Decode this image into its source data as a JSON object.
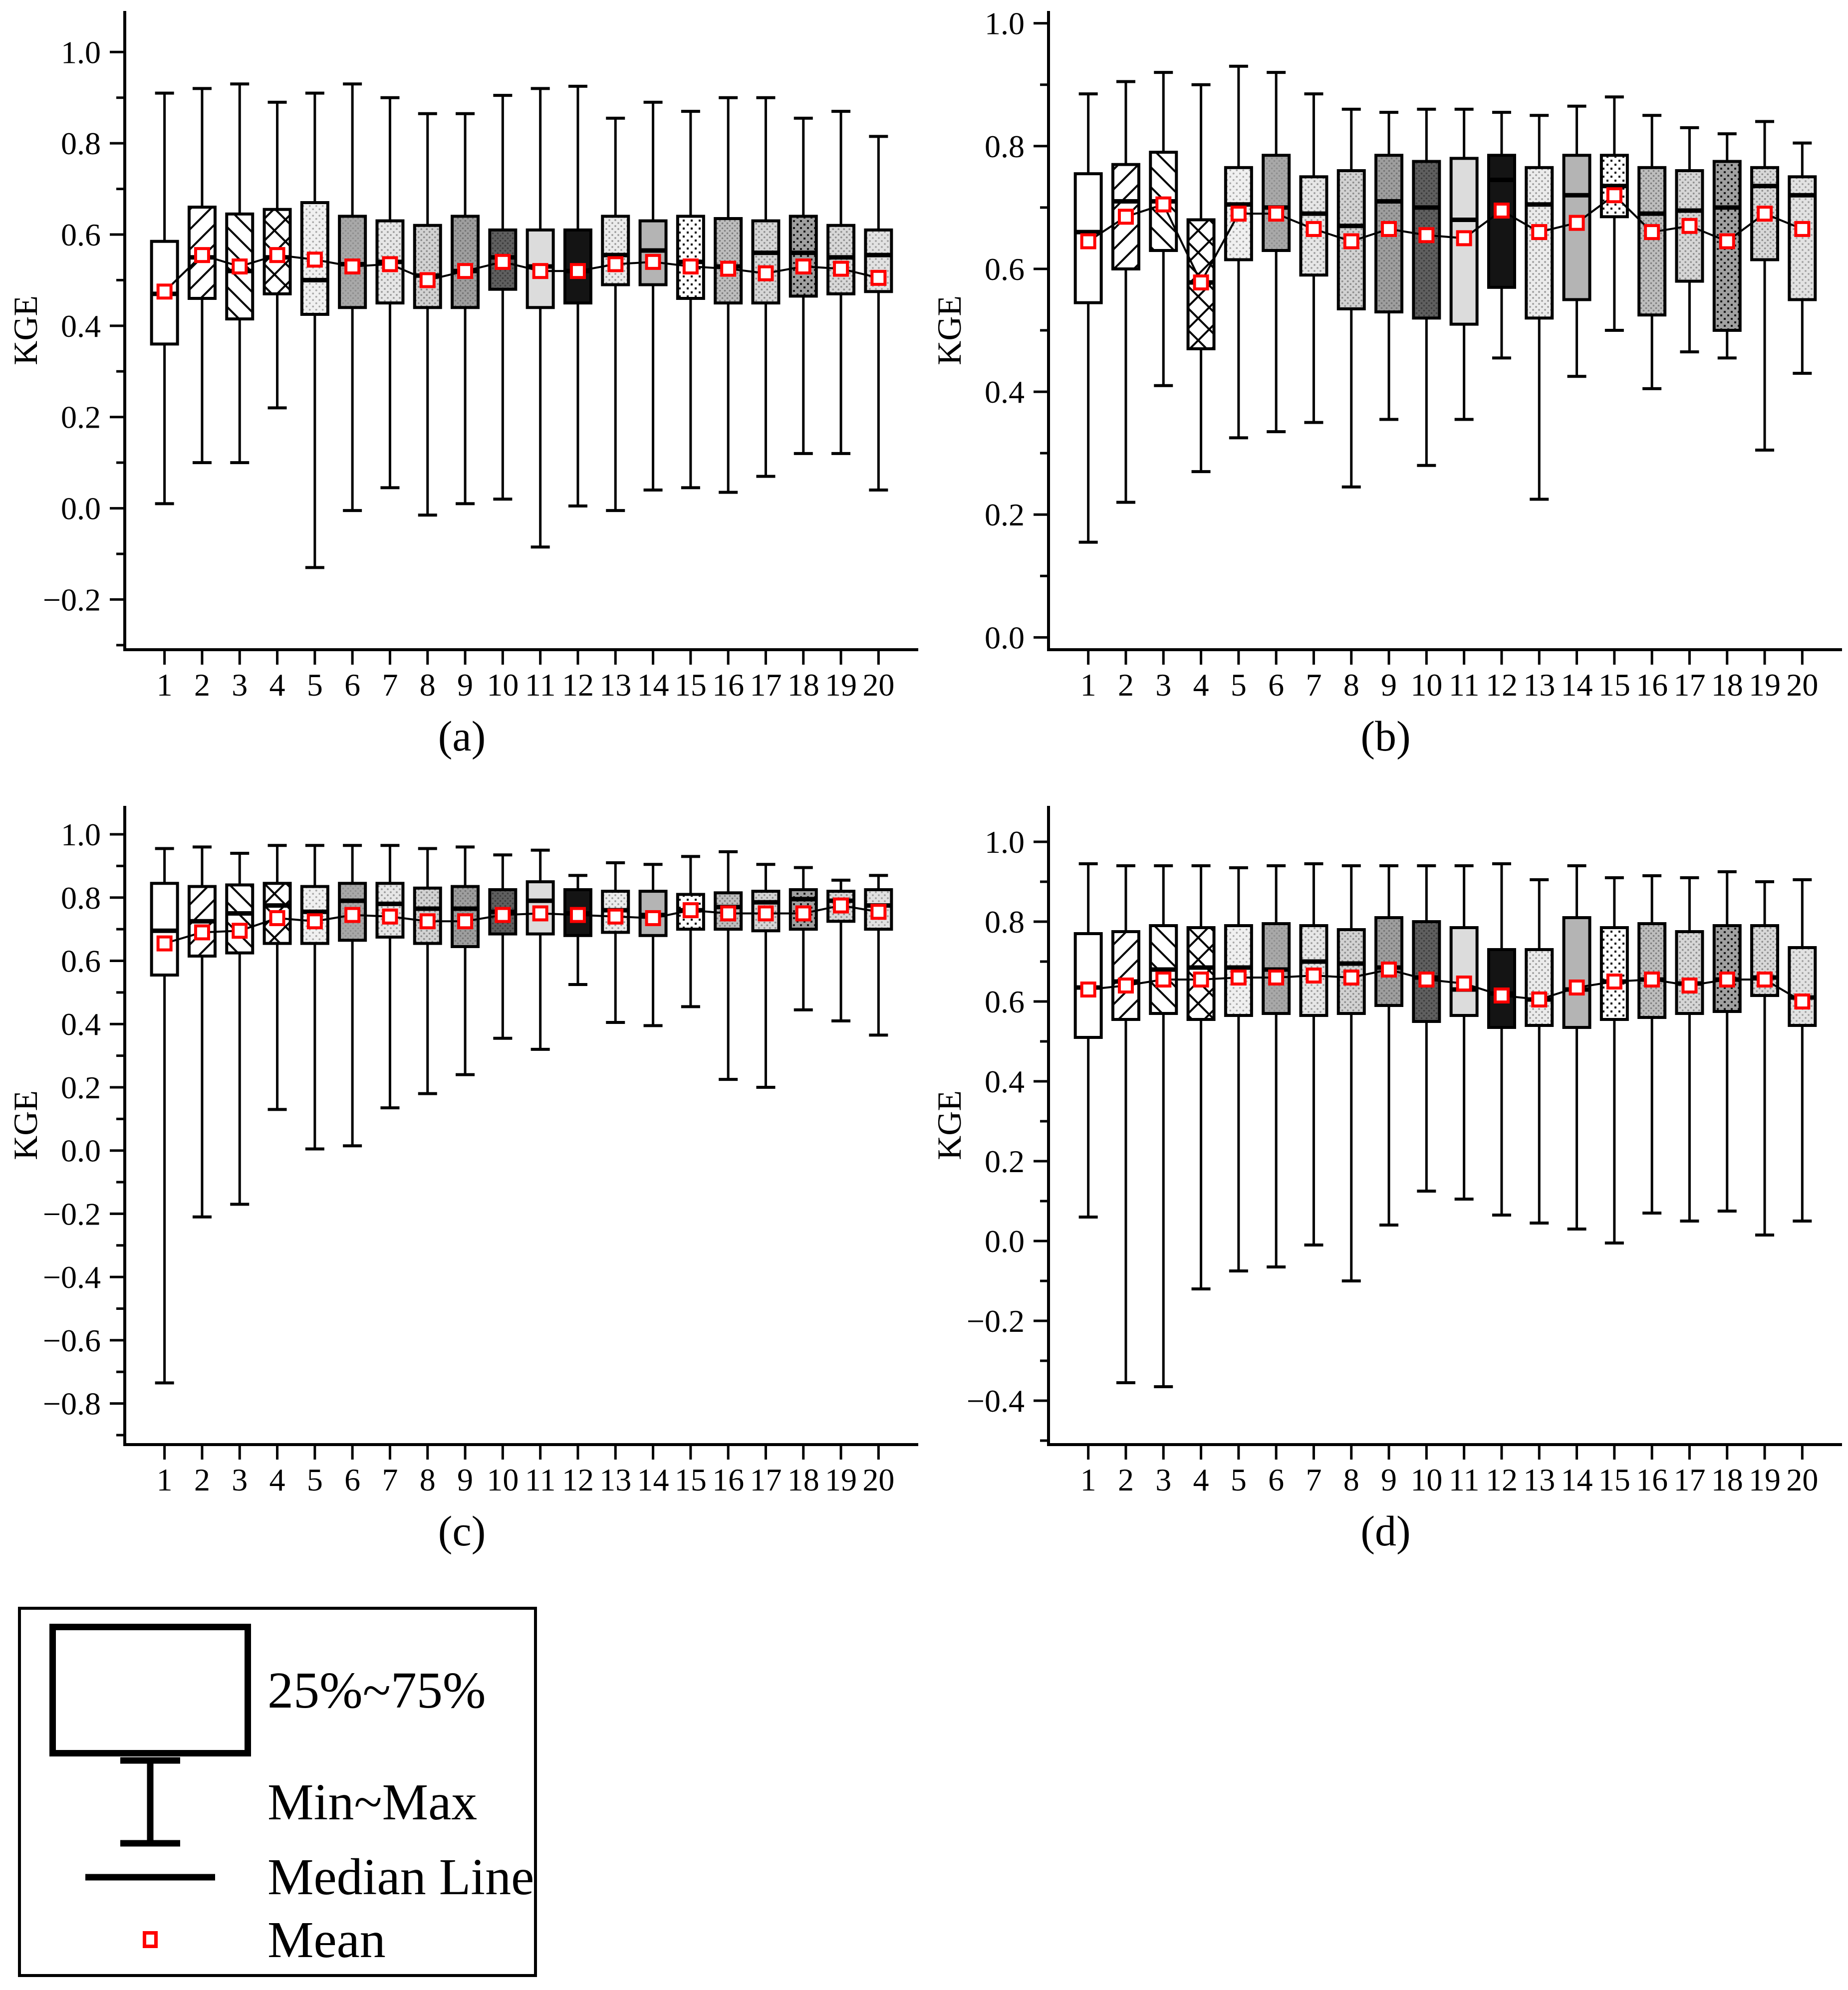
{
  "figure_title": "",
  "legend": {
    "mean_color": "#ff0000",
    "items": [
      {
        "symbol": "box-25-75",
        "label": "25%~75%"
      },
      {
        "symbol": "whisker-min-max",
        "label": "Min~Max"
      },
      {
        "symbol": "median-line",
        "label": "Median Line"
      },
      {
        "symbol": "mean-marker",
        "label": "Mean"
      }
    ]
  },
  "box_styles": [
    {
      "kind": "solid",
      "bg": "#ffffff"
    },
    {
      "kind": "hatchF",
      "bg": "#ffffff",
      "fg": "#000000",
      "size": 40,
      "lw": 4
    },
    {
      "kind": "hatchB",
      "bg": "#ffffff",
      "fg": "#000000",
      "size": 40,
      "lw": 4
    },
    {
      "kind": "cross",
      "bg": "#ffffff",
      "fg": "#000000",
      "size": 44,
      "lw": 4
    },
    {
      "kind": "dots",
      "bg": "#f0f0f0",
      "fg": "#a8a8a8",
      "size": 13,
      "r": 1.9
    },
    {
      "kind": "dots",
      "bg": "#a8a8a8",
      "fg": "#8e8e8e",
      "size": 10,
      "r": 1.8
    },
    {
      "kind": "dots",
      "bg": "#e6e6e6",
      "fg": "#9a9a9a",
      "size": 12,
      "r": 1.9
    },
    {
      "kind": "dots",
      "bg": "#d2d2d2",
      "fg": "#8c8c8c",
      "size": 11,
      "r": 1.9
    },
    {
      "kind": "dots",
      "bg": "#9e9e9e",
      "fg": "#747474",
      "size": 10,
      "r": 1.8
    },
    {
      "kind": "dots",
      "bg": "#5f5f5f",
      "fg": "#3c3c3c",
      "size": 10,
      "r": 1.8
    },
    {
      "kind": "solid",
      "bg": "#dcdcdc"
    },
    {
      "kind": "solid",
      "bg": "#141414"
    },
    {
      "kind": "dots",
      "bg": "#ebebeb",
      "fg": "#9a9a9a",
      "size": 12,
      "r": 1.9
    },
    {
      "kind": "solid",
      "bg": "#b4b4b4"
    },
    {
      "kind": "grid",
      "bg": "#ffffff",
      "fg": "#000000",
      "size": 16,
      "cell": 4
    },
    {
      "kind": "dots",
      "bg": "#bdbdbd",
      "fg": "#7d7d7d",
      "size": 10,
      "r": 1.8
    },
    {
      "kind": "dots",
      "bg": "#d6d6d6",
      "fg": "#8f8f8f",
      "size": 11,
      "r": 1.9
    },
    {
      "kind": "grid",
      "bg": "#a0a0a0",
      "fg": "#1a1a1a",
      "size": 14,
      "cell": 4
    },
    {
      "kind": "dots",
      "bg": "#d8d8d8",
      "fg": "#8f8f8f",
      "size": 11,
      "r": 1.9
    },
    {
      "kind": "dots",
      "bg": "#e2e2e2",
      "fg": "#a0a0a0",
      "size": 12,
      "r": 1.9
    }
  ],
  "chart_data": [
    {
      "type": "boxplot",
      "title": "(a)",
      "ylabel": "KGE",
      "ylim": [
        -0.31,
        1.09
      ],
      "yticks": [
        -0.2,
        0.0,
        0.2,
        0.4,
        0.6,
        0.8,
        1.0
      ],
      "yminor_step": 0.1,
      "categories": [
        "1",
        "2",
        "3",
        "4",
        "5",
        "6",
        "7",
        "8",
        "9",
        "10",
        "11",
        "12",
        "13",
        "14",
        "15",
        "16",
        "17",
        "18",
        "19",
        "20"
      ],
      "series": {
        "min": [
          0.01,
          0.1,
          0.1,
          0.22,
          -0.13,
          -0.005,
          0.045,
          -0.015,
          0.01,
          0.02,
          -0.085,
          0.005,
          -0.005,
          0.04,
          0.045,
          0.035,
          0.07,
          0.12,
          0.12,
          0.04
        ],
        "q1": [
          0.36,
          0.46,
          0.415,
          0.47,
          0.425,
          0.44,
          0.45,
          0.44,
          0.44,
          0.48,
          0.44,
          0.45,
          0.49,
          0.49,
          0.46,
          0.45,
          0.45,
          0.465,
          0.47,
          0.475
        ],
        "median": [
          0.47,
          0.55,
          0.52,
          0.55,
          0.5,
          0.535,
          0.54,
          0.51,
          0.52,
          0.55,
          0.53,
          0.52,
          0.555,
          0.565,
          0.54,
          0.53,
          0.56,
          0.56,
          0.55,
          0.555
        ],
        "q3": [
          0.585,
          0.66,
          0.645,
          0.655,
          0.67,
          0.64,
          0.63,
          0.62,
          0.64,
          0.61,
          0.61,
          0.61,
          0.64,
          0.63,
          0.64,
          0.635,
          0.63,
          0.64,
          0.62,
          0.61
        ],
        "max": [
          0.91,
          0.92,
          0.93,
          0.89,
          0.91,
          0.93,
          0.9,
          0.865,
          0.865,
          0.905,
          0.92,
          0.925,
          0.855,
          0.89,
          0.87,
          0.9,
          0.9,
          0.855,
          0.87,
          0.815
        ],
        "mean": [
          0.475,
          0.555,
          0.53,
          0.555,
          0.545,
          0.53,
          0.535,
          0.5,
          0.52,
          0.54,
          0.52,
          0.52,
          0.535,
          0.54,
          0.53,
          0.525,
          0.515,
          0.53,
          0.525,
          0.505
        ]
      }
    },
    {
      "type": "boxplot",
      "title": "(b)",
      "ylabel": "KGE",
      "ylim": [
        -0.02,
        1.02
      ],
      "yticks": [
        0.0,
        0.2,
        0.4,
        0.6,
        0.8,
        1.0
      ],
      "yminor_step": 0.1,
      "categories": [
        "1",
        "2",
        "3",
        "4",
        "5",
        "6",
        "7",
        "8",
        "9",
        "10",
        "11",
        "12",
        "13",
        "14",
        "15",
        "16",
        "17",
        "18",
        "19",
        "20"
      ],
      "series": {
        "min": [
          0.155,
          0.22,
          0.41,
          0.27,
          0.325,
          0.335,
          0.35,
          0.245,
          0.355,
          0.28,
          0.355,
          0.455,
          0.225,
          0.425,
          0.5,
          0.405,
          0.465,
          0.455,
          0.305,
          0.43
        ],
        "q1": [
          0.545,
          0.6,
          0.63,
          0.47,
          0.615,
          0.63,
          0.59,
          0.535,
          0.53,
          0.52,
          0.51,
          0.57,
          0.52,
          0.55,
          0.685,
          0.525,
          0.58,
          0.5,
          0.615,
          0.55
        ],
        "median": [
          0.66,
          0.71,
          0.71,
          0.578,
          0.705,
          0.7,
          0.69,
          0.67,
          0.71,
          0.7,
          0.68,
          0.745,
          0.705,
          0.72,
          0.735,
          0.69,
          0.695,
          0.7,
          0.735,
          0.72
        ],
        "q3": [
          0.755,
          0.77,
          0.79,
          0.68,
          0.765,
          0.785,
          0.75,
          0.76,
          0.785,
          0.775,
          0.78,
          0.785,
          0.765,
          0.785,
          0.785,
          0.765,
          0.76,
          0.775,
          0.765,
          0.75
        ],
        "max": [
          0.885,
          0.905,
          0.92,
          0.9,
          0.93,
          0.92,
          0.885,
          0.86,
          0.855,
          0.86,
          0.86,
          0.855,
          0.85,
          0.865,
          0.88,
          0.85,
          0.83,
          0.82,
          0.84,
          0.805
        ],
        "mean": [
          0.645,
          0.685,
          0.705,
          0.578,
          0.69,
          0.69,
          0.665,
          0.645,
          0.665,
          0.655,
          0.65,
          0.695,
          0.66,
          0.675,
          0.72,
          0.66,
          0.67,
          0.645,
          0.69,
          0.665
        ]
      }
    },
    {
      "type": "boxplot",
      "title": "(c)",
      "ylabel": "KGE",
      "ylim": [
        -0.93,
        1.09
      ],
      "yticks": [
        -0.8,
        -0.6,
        -0.4,
        -0.2,
        0.0,
        0.2,
        0.4,
        0.6,
        0.8,
        1.0
      ],
      "yminor_step": 0.1,
      "categories": [
        "1",
        "2",
        "3",
        "4",
        "5",
        "6",
        "7",
        "8",
        "9",
        "10",
        "11",
        "12",
        "13",
        "14",
        "15",
        "16",
        "17",
        "18",
        "19",
        "20"
      ],
      "series": {
        "min": [
          -0.735,
          -0.21,
          -0.17,
          0.13,
          0.005,
          0.015,
          0.135,
          0.18,
          0.24,
          0.355,
          0.32,
          0.525,
          0.405,
          0.395,
          0.455,
          0.225,
          0.2,
          0.445,
          0.41,
          0.365
        ],
        "q1": [
          0.555,
          0.615,
          0.625,
          0.655,
          0.655,
          0.665,
          0.675,
          0.655,
          0.645,
          0.685,
          0.685,
          0.68,
          0.69,
          0.68,
          0.7,
          0.7,
          0.695,
          0.7,
          0.725,
          0.7
        ],
        "median": [
          0.695,
          0.725,
          0.75,
          0.775,
          0.755,
          0.79,
          0.78,
          0.765,
          0.765,
          0.755,
          0.79,
          0.75,
          0.76,
          0.745,
          0.76,
          0.77,
          0.785,
          0.795,
          0.79,
          0.775
        ],
        "q3": [
          0.845,
          0.835,
          0.84,
          0.845,
          0.835,
          0.845,
          0.845,
          0.83,
          0.835,
          0.825,
          0.85,
          0.825,
          0.82,
          0.82,
          0.81,
          0.815,
          0.82,
          0.825,
          0.82,
          0.825
        ],
        "max": [
          0.955,
          0.96,
          0.94,
          0.965,
          0.965,
          0.965,
          0.965,
          0.955,
          0.96,
          0.935,
          0.95,
          0.87,
          0.91,
          0.905,
          0.93,
          0.945,
          0.905,
          0.895,
          0.855,
          0.87
        ],
        "mean": [
          0.655,
          0.69,
          0.695,
          0.735,
          0.725,
          0.745,
          0.74,
          0.725,
          0.725,
          0.745,
          0.75,
          0.745,
          0.74,
          0.735,
          0.76,
          0.75,
          0.75,
          0.75,
          0.775,
          0.755
        ]
      }
    },
    {
      "type": "boxplot",
      "title": "(d)",
      "ylabel": "KGE",
      "ylim": [
        -0.51,
        1.09
      ],
      "yticks": [
        -0.4,
        -0.2,
        0.0,
        0.2,
        0.4,
        0.6,
        0.8,
        1.0
      ],
      "yminor_step": 0.1,
      "categories": [
        "1",
        "2",
        "3",
        "4",
        "5",
        "6",
        "7",
        "8",
        "9",
        "10",
        "11",
        "12",
        "13",
        "14",
        "15",
        "16",
        "17",
        "18",
        "19",
        "20"
      ],
      "series": {
        "min": [
          0.06,
          -0.355,
          -0.365,
          -0.12,
          -0.075,
          -0.065,
          -0.01,
          -0.1,
          0.04,
          0.125,
          0.105,
          0.065,
          0.045,
          0.03,
          -0.005,
          0.07,
          0.05,
          0.075,
          0.015,
          0.05
        ],
        "q1": [
          0.51,
          0.555,
          0.57,
          0.555,
          0.565,
          0.57,
          0.565,
          0.57,
          0.59,
          0.55,
          0.565,
          0.535,
          0.54,
          0.535,
          0.555,
          0.56,
          0.57,
          0.575,
          0.615,
          0.54
        ],
        "median": [
          0.635,
          0.65,
          0.68,
          0.685,
          0.685,
          0.68,
          0.7,
          0.695,
          0.685,
          0.66,
          0.63,
          0.62,
          0.605,
          0.63,
          0.65,
          0.655,
          0.645,
          0.655,
          0.66,
          0.61
        ],
        "q3": [
          0.77,
          0.775,
          0.79,
          0.785,
          0.79,
          0.795,
          0.79,
          0.78,
          0.81,
          0.8,
          0.785,
          0.73,
          0.73,
          0.81,
          0.785,
          0.795,
          0.775,
          0.79,
          0.79,
          0.735
        ],
        "max": [
          0.945,
          0.94,
          0.94,
          0.94,
          0.935,
          0.94,
          0.945,
          0.94,
          0.94,
          0.94,
          0.94,
          0.945,
          0.905,
          0.94,
          0.91,
          0.915,
          0.91,
          0.925,
          0.9,
          0.905
        ],
        "mean": [
          0.63,
          0.64,
          0.655,
          0.655,
          0.66,
          0.66,
          0.665,
          0.66,
          0.68,
          0.655,
          0.645,
          0.615,
          0.605,
          0.635,
          0.65,
          0.655,
          0.64,
          0.655,
          0.655,
          0.6
        ]
      }
    }
  ]
}
